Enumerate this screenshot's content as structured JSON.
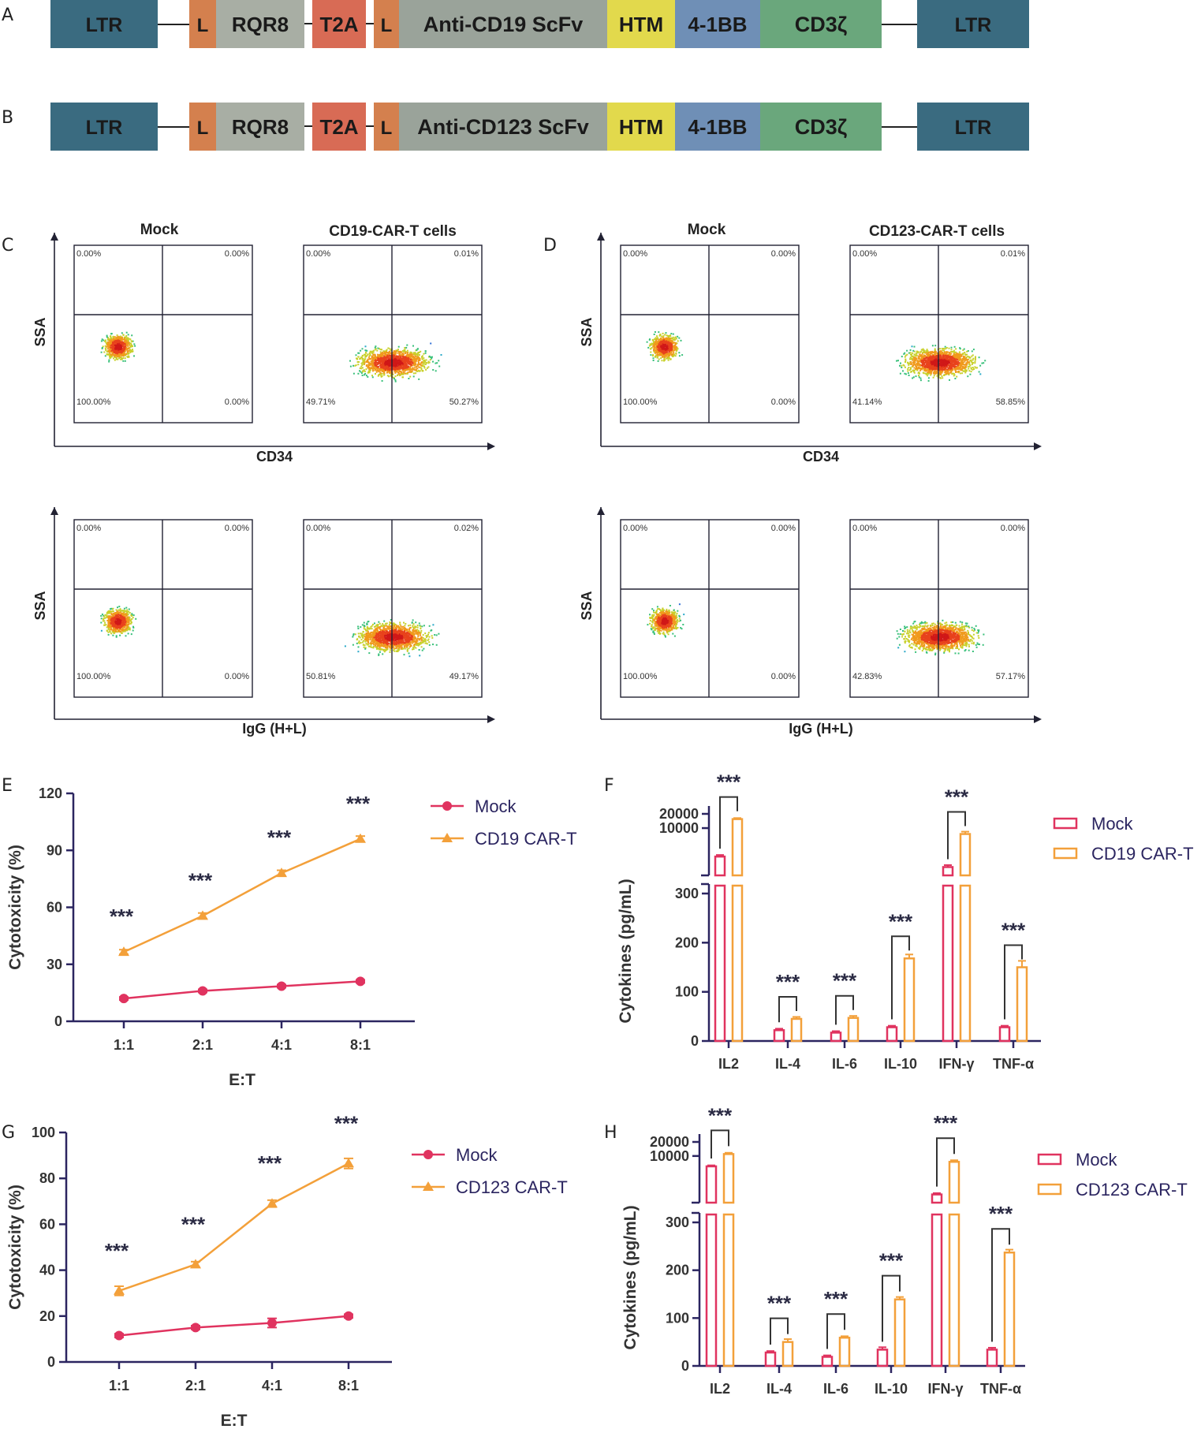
{
  "panels": {
    "A": {
      "letter": "A",
      "segments": [
        "LTR",
        "L",
        "RQR8",
        "T2A",
        "L",
        "Anti-CD19 ScFv",
        "HTM",
        "4-1BB",
        "CD3ζ",
        "LTR"
      ]
    },
    "B": {
      "letter": "B",
      "segments": [
        "LTR",
        "L",
        "RQR8",
        "T2A",
        "L",
        "Anti-CD123 ScFv",
        "HTM",
        "4-1BB",
        "CD3ζ",
        "LTR"
      ]
    },
    "C": {
      "letter": "C",
      "mock_title": "Mock",
      "car_title": "CD19-CAR-T cells",
      "y_label": "SSA",
      "x_label_top": "CD34",
      "x_label_bottom": "IgG (H+L)",
      "plots": {
        "top_mock": [
          "0.00%",
          "0.00%",
          "100.00%",
          "0.00%"
        ],
        "top_car": [
          "0.00%",
          "0.01%",
          "49.71%",
          "50.27%"
        ],
        "bot_mock": [
          "0.00%",
          "0.00%",
          "100.00%",
          "0.00%"
        ],
        "bot_car": [
          "0.00%",
          "0.02%",
          "50.81%",
          "49.17%"
        ]
      }
    },
    "D": {
      "letter": "D",
      "mock_title": "Mock",
      "car_title": "CD123-CAR-T cells",
      "y_label": "SSA",
      "x_label_top": "CD34",
      "x_label_bottom": "IgG (H+L)",
      "plots": {
        "top_mock": [
          "0.00%",
          "0.00%",
          "100.00%",
          "0.00%"
        ],
        "top_car": [
          "0.00%",
          "0.01%",
          "41.14%",
          "58.85%"
        ],
        "bot_mock": [
          "0.00%",
          "0.00%",
          "100.00%",
          "0.00%"
        ],
        "bot_car": [
          "0.00%",
          "0.00%",
          "42.83%",
          "57.17%"
        ]
      }
    },
    "E": {
      "letter": "E"
    },
    "F": {
      "letter": "F"
    },
    "G": {
      "letter": "G"
    },
    "H": {
      "letter": "H"
    }
  },
  "colors": {
    "ltr": "#3a6b80",
    "leader": "#d4804e",
    "rqr8": "#a8aea4",
    "t2a": "#d86b55",
    "scfv": "#9aa39a",
    "htm": "#e2d94c",
    "bb": "#6f8fb6",
    "cd3z": "#6aa77c",
    "mock": "#e0335f",
    "car": "#f3a03a",
    "axis": "#2b2560"
  },
  "chart_data": [
    {
      "id": "E",
      "type": "line",
      "title": "",
      "xlabel": "E:T",
      "ylabel": "Cytotoxicity (%)",
      "categories": [
        "1:1",
        "2:1",
        "4:1",
        "8:1"
      ],
      "ylim": [
        0,
        120
      ],
      "yticks": [
        0,
        30,
        60,
        90,
        120
      ],
      "series": [
        {
          "name": "Mock",
          "values": [
            12,
            16,
            18.5,
            21
          ],
          "errors": [
            0.8,
            0.8,
            0.8,
            0.8
          ]
        },
        {
          "name": "CD19 CAR-T",
          "values": [
            36.5,
            55.5,
            78,
            96
          ],
          "errors": [
            1.2,
            1.5,
            1.5,
            1.5
          ]
        }
      ],
      "annotations": [
        "***",
        "***",
        "***",
        "***"
      ]
    },
    {
      "id": "F",
      "type": "bar",
      "title": "",
      "xlabel": "",
      "ylabel": "Cytokines (pg/mL)",
      "categories": [
        "IL2",
        "IL-4",
        "IL-6",
        "IL-10",
        "IFN-γ",
        "TNF-α"
      ],
      "ylim": [
        0,
        20000
      ],
      "yticks_lower": [
        0,
        100,
        200,
        300
      ],
      "yticks_upper": [
        10000,
        20000
      ],
      "series": [
        {
          "name": "Mock",
          "values": [
            2500,
            22,
            17,
            28,
            1500,
            28
          ],
          "errors": [
            200,
            3,
            3,
            3,
            150,
            3
          ]
        },
        {
          "name": "CD19 CAR-T",
          "values": [
            15500,
            45,
            47,
            168,
            7500,
            150
          ],
          "errors": [
            800,
            4,
            4,
            8,
            900,
            13
          ]
        }
      ],
      "annotations": [
        "***",
        "***",
        "***",
        "***",
        "***",
        "***"
      ]
    },
    {
      "id": "G",
      "type": "line",
      "title": "",
      "xlabel": "E:T",
      "ylabel": "Cytotoxicity (%)",
      "categories": [
        "1:1",
        "2:1",
        "4:1",
        "8:1"
      ],
      "ylim": [
        0,
        100
      ],
      "yticks": [
        0,
        20,
        40,
        60,
        80,
        100
      ],
      "series": [
        {
          "name": "Mock",
          "values": [
            11.5,
            15,
            17,
            20
          ],
          "errors": [
            0.8,
            0.8,
            2,
            0.8
          ]
        },
        {
          "name": "CD123 CAR-T",
          "values": [
            31,
            42.5,
            69,
            86.5
          ],
          "errors": [
            2,
            1.2,
            1.5,
            2.2
          ]
        }
      ],
      "annotations": [
        "***",
        "***",
        "***",
        "***"
      ]
    },
    {
      "id": "H",
      "type": "bar",
      "title": "",
      "xlabel": "",
      "ylabel": "Cytokines (pg/mL)",
      "categories": [
        "IL2",
        "IL-4",
        "IL-6",
        "IL-10",
        "IFN-γ",
        "TNF-α"
      ],
      "ylim": [
        0,
        20000
      ],
      "yticks_lower": [
        0,
        100,
        200,
        300
      ],
      "yticks_upper": [
        10000,
        20000
      ],
      "series": [
        {
          "name": "Mock",
          "values": [
            6000,
            28,
            19,
            34,
            1500,
            34
          ],
          "errors": [
            300,
            3,
            3,
            5,
            100,
            4
          ]
        },
        {
          "name": "CD123 CAR-T",
          "values": [
            11000,
            50,
            59,
            139,
            7500,
            237
          ],
          "errors": [
            700,
            6,
            3,
            5,
            600,
            6
          ]
        }
      ],
      "annotations": [
        "***",
        "***",
        "***",
        "***",
        "***",
        "***"
      ]
    }
  ]
}
